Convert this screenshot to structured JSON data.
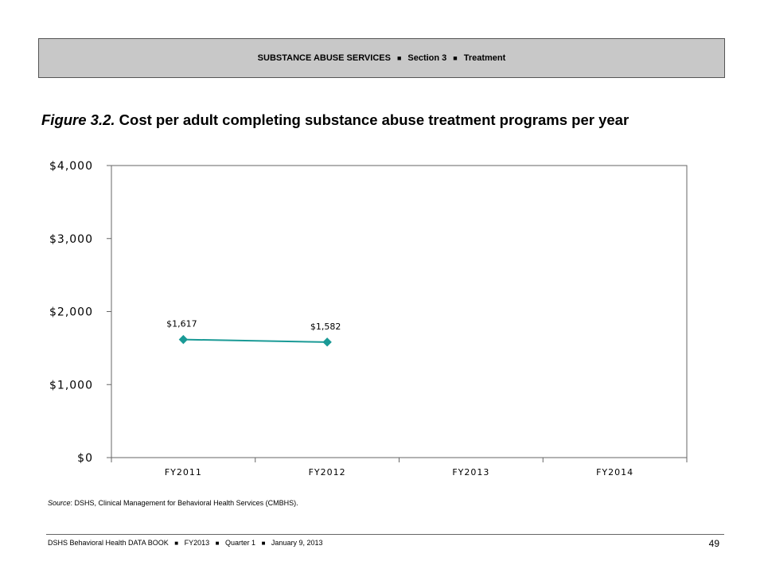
{
  "header": {
    "section_name": "SUBSTANCE ABUSE SERVICES",
    "section_number": "Section 3",
    "section_topic": "Treatment",
    "separator": "■"
  },
  "figure": {
    "label": "Figure 3.2.",
    "title": "Cost per adult completing substance abuse treatment programs per year"
  },
  "chart_data": {
    "type": "line",
    "categories": [
      "FY2011",
      "FY2012",
      "FY2013",
      "FY2014"
    ],
    "series": [
      {
        "values": [
          1617,
          1582,
          null,
          null
        ],
        "color": "#1a9a96",
        "data_labels": [
          "$1,617",
          "$1,582"
        ]
      }
    ],
    "y_ticks": [
      0,
      1000,
      2000,
      3000,
      4000
    ],
    "y_tick_labels": [
      "$0",
      "$1,000",
      "$2,000",
      "$3,000",
      "$4,000"
    ],
    "ylim": [
      0,
      4000
    ],
    "grid": false,
    "legend": "none"
  },
  "source": {
    "label": "Source",
    "text": ": DSHS, Clinical Management for Behavioral Health Services (CMBHS)."
  },
  "footer": {
    "publication": "DSHS Behavioral Health DATA BOOK",
    "fiscal_year": "FY2013",
    "quarter": "Quarter 1",
    "date": "January  9, 2013",
    "separator": "■",
    "page_number": "49"
  }
}
